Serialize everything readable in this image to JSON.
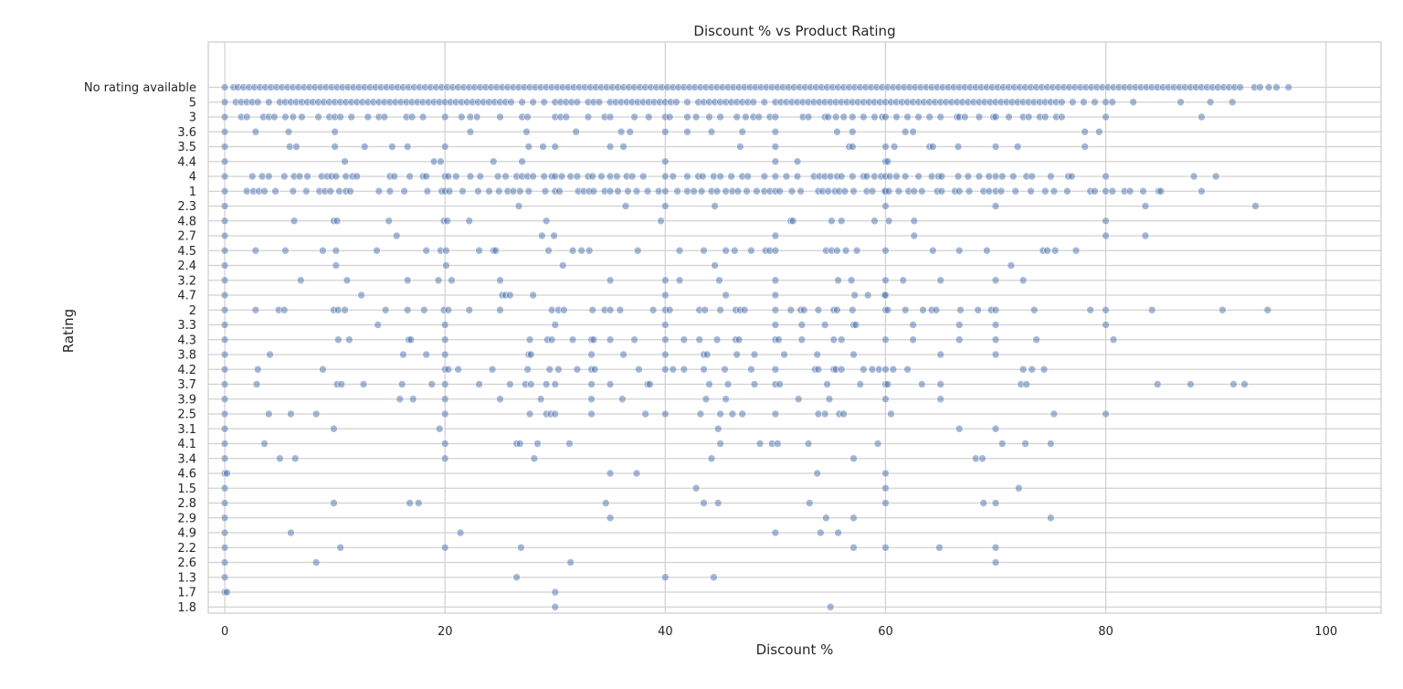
{
  "chart_data": {
    "type": "scatter",
    "title": "Discount % vs Product Rating",
    "xlabel": "Discount %",
    "ylabel": "Rating",
    "xlim": [
      -1.5,
      105
    ],
    "x_ticks": [
      0,
      20,
      40,
      60,
      80,
      100
    ],
    "grid": true,
    "marker_color": "#4c72b0",
    "categories": [
      "No rating available",
      "5",
      "3",
      "3.6",
      "3.5",
      "4.4",
      "4",
      "1",
      "2.3",
      "4.8",
      "2.7",
      "4.5",
      "2.4",
      "3.2",
      "4.7",
      "2",
      "3.3",
      "4.3",
      "3.8",
      "4.2",
      "3.7",
      "3.9",
      "2.5",
      "3.1",
      "4.1",
      "3.4",
      "4.6",
      "1.5",
      "2.8",
      "2.9",
      "4.9",
      "2.2",
      "2.6",
      "1.3",
      "1.7",
      "1.8"
    ],
    "points": {
      "No rating available": [
        0,
        0.8,
        1.2,
        1.7,
        2.2,
        2.7,
        3.2,
        3.7,
        4.2,
        4.7,
        5.2,
        5.7,
        6.2,
        6.7,
        7.2,
        7.7,
        8.2,
        8.7,
        9.2,
        9.7,
        10.2,
        10.7,
        11.2,
        11.7,
        12.2,
        12.7,
        13.2,
        13.7,
        14.2,
        14.7,
        15.2,
        15.7,
        16.2,
        16.7,
        17.2,
        17.7,
        18.2,
        18.7,
        19.2,
        19.7,
        20.2,
        20.7,
        21.2,
        21.7,
        22.2,
        22.7,
        23.2,
        23.7,
        24.2,
        24.7,
        25.2,
        25.7,
        26.2,
        26.7,
        27.2,
        27.7,
        28.2,
        28.7,
        29.2,
        29.7,
        30.2,
        30.7,
        31.2,
        31.7,
        32.2,
        32.7,
        33.2,
        33.7,
        34.2,
        34.7,
        35.2,
        35.7,
        36.2,
        36.7,
        37.2,
        37.7,
        38.2,
        38.7,
        39.2,
        39.7,
        40.2,
        40.7,
        41.2,
        41.7,
        42.2,
        42.7,
        43.2,
        43.7,
        44.2,
        44.7,
        45.2,
        45.7,
        46.2,
        46.7,
        47.2,
        47.7,
        48.2,
        48.7,
        49.2,
        49.7,
        50.2,
        50.7,
        51.2,
        51.7,
        52.2,
        52.7,
        53.2,
        53.7,
        54.2,
        54.7,
        55.2,
        55.7,
        56.2,
        56.7,
        57.2,
        57.7,
        58.2,
        58.7,
        59.2,
        59.7,
        60.2,
        60.7,
        61.2,
        61.7,
        62.2,
        62.7,
        63.2,
        63.7,
        64.2,
        64.7,
        65.2,
        65.7,
        66.2,
        66.7,
        67.2,
        67.7,
        68.2,
        68.7,
        69.2,
        69.7,
        70.2,
        70.7,
        71.2,
        71.7,
        72.2,
        72.7,
        73.2,
        73.7,
        74.2,
        74.7,
        75.2,
        75.7,
        76.2,
        76.7,
        77.2,
        77.7,
        78.2,
        78.7,
        79.2,
        79.7,
        80.2,
        80.7,
        81.2,
        81.7,
        82.2,
        82.7,
        83.2,
        83.7,
        84.2,
        84.7,
        85.2,
        85.7,
        86.2,
        86.7,
        87.2,
        87.7,
        88.2,
        88.7,
        89.2,
        89.7,
        90.2,
        90.7,
        91.2,
        91.7,
        92.2,
        93.5,
        94,
        94.8,
        95.5,
        96.6
      ],
      "5": [
        0,
        1,
        1.5,
        2,
        2.5,
        3,
        4,
        5,
        5.5,
        6,
        6.5,
        7,
        7.5,
        8,
        8.5,
        9,
        9.5,
        10,
        10.5,
        11,
        11.5,
        12,
        12.5,
        13,
        13.5,
        14,
        14.5,
        15,
        15.5,
        16,
        16.5,
        17,
        17.5,
        18,
        18.5,
        19,
        19.5,
        20,
        20.5,
        21,
        21.5,
        22,
        22.5,
        23,
        23.5,
        24,
        24.5,
        25,
        25.5,
        26,
        27,
        28,
        29,
        30,
        30.5,
        31,
        31.5,
        32,
        33,
        33.5,
        34,
        35,
        35.5,
        36,
        36.5,
        37,
        37.5,
        38,
        38.5,
        39,
        39.5,
        40,
        40.5,
        41,
        42,
        43,
        43.5,
        44,
        44.5,
        45,
        45.5,
        46,
        46.5,
        47,
        47.5,
        48,
        49,
        50,
        50.5,
        51,
        51.5,
        52,
        52.5,
        53,
        53.5,
        54,
        54.5,
        55,
        55.5,
        56,
        56.5,
        57,
        57.5,
        58,
        58.5,
        59,
        59.5,
        60,
        60.5,
        61,
        61.5,
        62,
        62.5,
        63,
        63.5,
        64,
        64.5,
        65,
        65.5,
        66,
        66.5,
        67,
        67.5,
        68,
        68.5,
        69,
        69.5,
        70,
        70.5,
        71,
        71.5,
        72,
        72.5,
        73,
        73.5,
        74,
        74.5,
        75,
        75.5,
        76,
        77,
        78,
        79,
        80,
        80.6,
        82.5,
        86.8,
        89.5,
        91.5
      ],
      "3": [
        0,
        1.5,
        2,
        3.5,
        4,
        4.5,
        5.5,
        6.2,
        7,
        8.5,
        9.5,
        10,
        10.5,
        11.5,
        13,
        14,
        14.5,
        16.5,
        17,
        18,
        20,
        21.5,
        22.3,
        22.9,
        25,
        27,
        27.5,
        30,
        30.5,
        31,
        33,
        34.5,
        35,
        37.2,
        38.5,
        40,
        40.4,
        42,
        42.8,
        44,
        45,
        46.5,
        47.3,
        48,
        48.5,
        49.5,
        50,
        52.5,
        53,
        54.5,
        54.8,
        55.5,
        56.2,
        57,
        58,
        59,
        59.7,
        60,
        61,
        62,
        63,
        64,
        65,
        66.5,
        66.7,
        67.2,
        68.5,
        69.8,
        70,
        71.2,
        72.5,
        73,
        74,
        74.5,
        75.5,
        76,
        80,
        88.7
      ],
      "3.6": [
        0,
        2.8,
        5.8,
        10,
        22.3,
        27.4,
        31.9,
        36,
        36.8,
        40,
        42,
        44.2,
        47,
        50,
        55.6,
        57,
        61.8,
        62.5,
        78.1,
        79.4
      ],
      "3.5": [
        0,
        5.9,
        6.5,
        10,
        12.7,
        15.2,
        16.6,
        20,
        27.6,
        28.9,
        30,
        35,
        36.2,
        46.8,
        50,
        56.7,
        57,
        60,
        60.8,
        64,
        64.3,
        66.6,
        70,
        72,
        78.1
      ],
      "4.4": [
        0,
        10.9,
        19,
        19.6,
        24.4,
        27,
        40,
        50,
        52,
        60,
        60.2
      ],
      "4": [
        0,
        2.5,
        3.4,
        4,
        5.4,
        6.3,
        6.8,
        7.5,
        8.8,
        9.3,
        9.7,
        10.1,
        11,
        11.6,
        12,
        15,
        15.4,
        16.8,
        18,
        18.3,
        20,
        20.3,
        21,
        22.3,
        23.2,
        24.8,
        25.5,
        26.5,
        27,
        27.5,
        28,
        29,
        29.7,
        30,
        30.6,
        31.4,
        32,
        33,
        33.4,
        34.2,
        35,
        35.6,
        36.5,
        37,
        38,
        40,
        40.7,
        42,
        43,
        43.4,
        44.4,
        45,
        46,
        47,
        47.5,
        49,
        50,
        51,
        52,
        53.5,
        54,
        54.5,
        55,
        55.6,
        56,
        57,
        58,
        58.3,
        59,
        59.6,
        60,
        60.4,
        61,
        61.8,
        63,
        64.2,
        64.8,
        65.1,
        66.6,
        67.5,
        68.5,
        69.4,
        70,
        70.6,
        71.6,
        72.8,
        73.3,
        75,
        76.6,
        76.9,
        80,
        88,
        90
      ],
      "1": [
        0,
        2,
        2.6,
        3.1,
        3.6,
        4.6,
        6.2,
        7.4,
        8.6,
        9.1,
        9.6,
        10.4,
        11,
        11.4,
        14,
        15,
        16.3,
        18.4,
        19.7,
        20,
        20.4,
        21.6,
        23,
        24,
        24.9,
        25.7,
        26.2,
        26.8,
        27.6,
        29.1,
        30,
        30.4,
        32.1,
        32.6,
        33.1,
        33.5,
        34.5,
        35,
        35.7,
        36.6,
        37.4,
        38.4,
        39.4,
        40,
        41.1,
        42,
        42.6,
        43.3,
        44.2,
        44.7,
        45.5,
        46.1,
        46.6,
        47.4,
        48.3,
        49,
        49.5,
        50,
        50.4,
        51.5,
        52.3,
        53.9,
        54.3,
        54.8,
        55.4,
        55.8,
        56.3,
        57.1,
        58.3,
        58.8,
        59.9,
        60,
        60.3,
        61.2,
        62.1,
        62.6,
        63.3,
        64.7,
        65.1,
        66.3,
        66.7,
        67.6,
        68.9,
        69.4,
        70,
        70.5,
        71.8,
        73.2,
        74.5,
        75.3,
        76.5,
        78.6,
        79,
        80,
        80.6,
        81.7,
        82.2,
        83.4,
        84.8,
        85,
        88.7
      ],
      "2.3": [
        0,
        26.7,
        36.4,
        40,
        44.5,
        60,
        70,
        83.6,
        93.6
      ],
      "4.8": [
        0,
        6.3,
        9.9,
        10.2,
        14.9,
        19.9,
        20.2,
        22.2,
        29.2,
        39.6,
        51.4,
        51.6,
        55.1,
        56,
        59,
        60.3,
        62.6,
        80
      ],
      "2.7": [
        0,
        15.6,
        28.8,
        29.9,
        50,
        62.6,
        80,
        83.6
      ],
      "4.5": [
        0,
        2.8,
        5.5,
        8.9,
        10.1,
        13.8,
        18.3,
        19.6,
        20.1,
        23.1,
        24.4,
        24.6,
        29.4,
        31.6,
        32.4,
        33.1,
        37.5,
        41.3,
        43.5,
        45.5,
        46.3,
        47.8,
        49.1,
        49.5,
        50,
        54.6,
        55.1,
        55.6,
        56.4,
        57.4,
        60,
        64.3,
        66.7,
        69.2,
        74.3,
        74.7,
        75.4,
        77.3
      ],
      "2.4": [
        0,
        10.1,
        20.1,
        30.7,
        44.5,
        71.4
      ],
      "3.2": [
        0,
        6.9,
        11.1,
        16.6,
        19.4,
        20.6,
        25,
        35,
        40,
        41.3,
        44.9,
        50,
        55.7,
        56.9,
        60,
        61.6,
        65,
        70,
        72.5
      ],
      "4.7": [
        0,
        12.4,
        25.2,
        25.5,
        25.9,
        28,
        40,
        45.5,
        50,
        57.2,
        58.4,
        59.9,
        60
      ],
      "2": [
        0,
        2.8,
        4.9,
        5.4,
        9.9,
        10.3,
        10.9,
        14.6,
        16.6,
        18.1,
        19.9,
        20.3,
        22.2,
        25,
        29.7,
        30.3,
        30.8,
        33.4,
        34.5,
        35,
        35.9,
        38.9,
        40,
        40.4,
        43.1,
        43.6,
        45,
        46.4,
        46.8,
        47.2,
        50,
        51.4,
        52.3,
        52.6,
        53.9,
        55.3,
        55.6,
        57,
        60,
        60.2,
        61.8,
        63.4,
        64.2,
        64.6,
        66.8,
        68.4,
        69.6,
        70,
        73.5,
        78.6,
        80,
        84.2,
        90.6,
        94.7
      ],
      "3.3": [
        0,
        13.9,
        20,
        30,
        40,
        50,
        52.4,
        54.5,
        57.1,
        57.3,
        62.5,
        66.7,
        70,
        80
      ],
      "4.3": [
        0,
        10.3,
        11.3,
        16.7,
        16.9,
        20,
        27.7,
        29.3,
        29.7,
        31.6,
        33.3,
        33.5,
        35,
        37.2,
        40,
        41.7,
        43.1,
        44.7,
        46.4,
        46.7,
        50,
        50.3,
        52.4,
        55.3,
        56,
        60,
        62.5,
        66.7,
        70,
        73.7,
        80.7
      ],
      "3.8": [
        0,
        4.1,
        16.2,
        18.3,
        20,
        27.6,
        27.8,
        33.3,
        36.2,
        40,
        43.5,
        43.8,
        46.5,
        48.1,
        50.8,
        53.8,
        57.1,
        65,
        70
      ],
      "4.2": [
        0,
        3,
        8.9,
        20,
        20.3,
        21.2,
        24.3,
        27.5,
        29.5,
        30.3,
        32,
        33.3,
        33.6,
        37.6,
        40,
        40.7,
        41.7,
        43.5,
        45.4,
        47.8,
        50,
        53.6,
        53.9,
        55.3,
        55.5,
        56,
        58,
        58.8,
        59.4,
        60,
        60.7,
        62,
        72.5,
        73.3,
        74.4
      ],
      "3.7": [
        0,
        2.9,
        10.2,
        10.6,
        12.6,
        16.1,
        18.8,
        20,
        23.1,
        25.9,
        27.3,
        27.8,
        29.2,
        30,
        33.3,
        35,
        38.4,
        38.6,
        44,
        45.7,
        48.1,
        50,
        50.4,
        54.7,
        57.7,
        60,
        60.2,
        63.3,
        65,
        72.3,
        72.8,
        84.7,
        87.7,
        91.6,
        92.6
      ],
      "3.9": [
        0,
        15.9,
        17.1,
        20,
        25,
        28.7,
        33.3,
        36.1,
        43.7,
        45.5,
        52.1,
        54.9,
        60,
        65
      ],
      "2.5": [
        0,
        4,
        6,
        8.3,
        20,
        27.7,
        29.2,
        29.6,
        30,
        33.3,
        38.2,
        40,
        43.2,
        45,
        46.1,
        47,
        50,
        53.9,
        54.5,
        55.8,
        56.2,
        60.5,
        75.3,
        80
      ],
      "3.1": [
        0,
        9.9,
        19.5,
        44.8,
        66.7,
        70
      ],
      "4.1": [
        0,
        3.6,
        20,
        26.5,
        26.8,
        28.4,
        31.3,
        45,
        48.6,
        49.7,
        50.2,
        53,
        59.3,
        70.6,
        72.7,
        75
      ],
      "3.4": [
        0,
        5,
        6.4,
        20,
        28.1,
        44.2,
        57.1,
        68.2,
        68.8
      ],
      "4.6": [
        0,
        0.2,
        35,
        37.4,
        53.8,
        60
      ],
      "1.5": [
        0,
        42.8,
        60,
        72.1
      ],
      "2.8": [
        0,
        9.9,
        16.8,
        17.6,
        34.6,
        43.5,
        44.8,
        53.1,
        60,
        68.9,
        70
      ],
      "2.9": [
        0,
        35,
        54.6,
        57.1,
        75
      ],
      "4.9": [
        0,
        6,
        21.4,
        50,
        54.1,
        55.7
      ],
      "2.2": [
        0,
        10.5,
        20,
        26.9,
        57.1,
        60,
        64.9,
        70
      ],
      "2.6": [
        0,
        8.3,
        31.4,
        70
      ],
      "1.3": [
        0,
        26.5,
        40,
        44.4
      ],
      "1.7": [
        0,
        0.2,
        30
      ],
      "1.8": [
        30,
        55
      ]
    }
  }
}
